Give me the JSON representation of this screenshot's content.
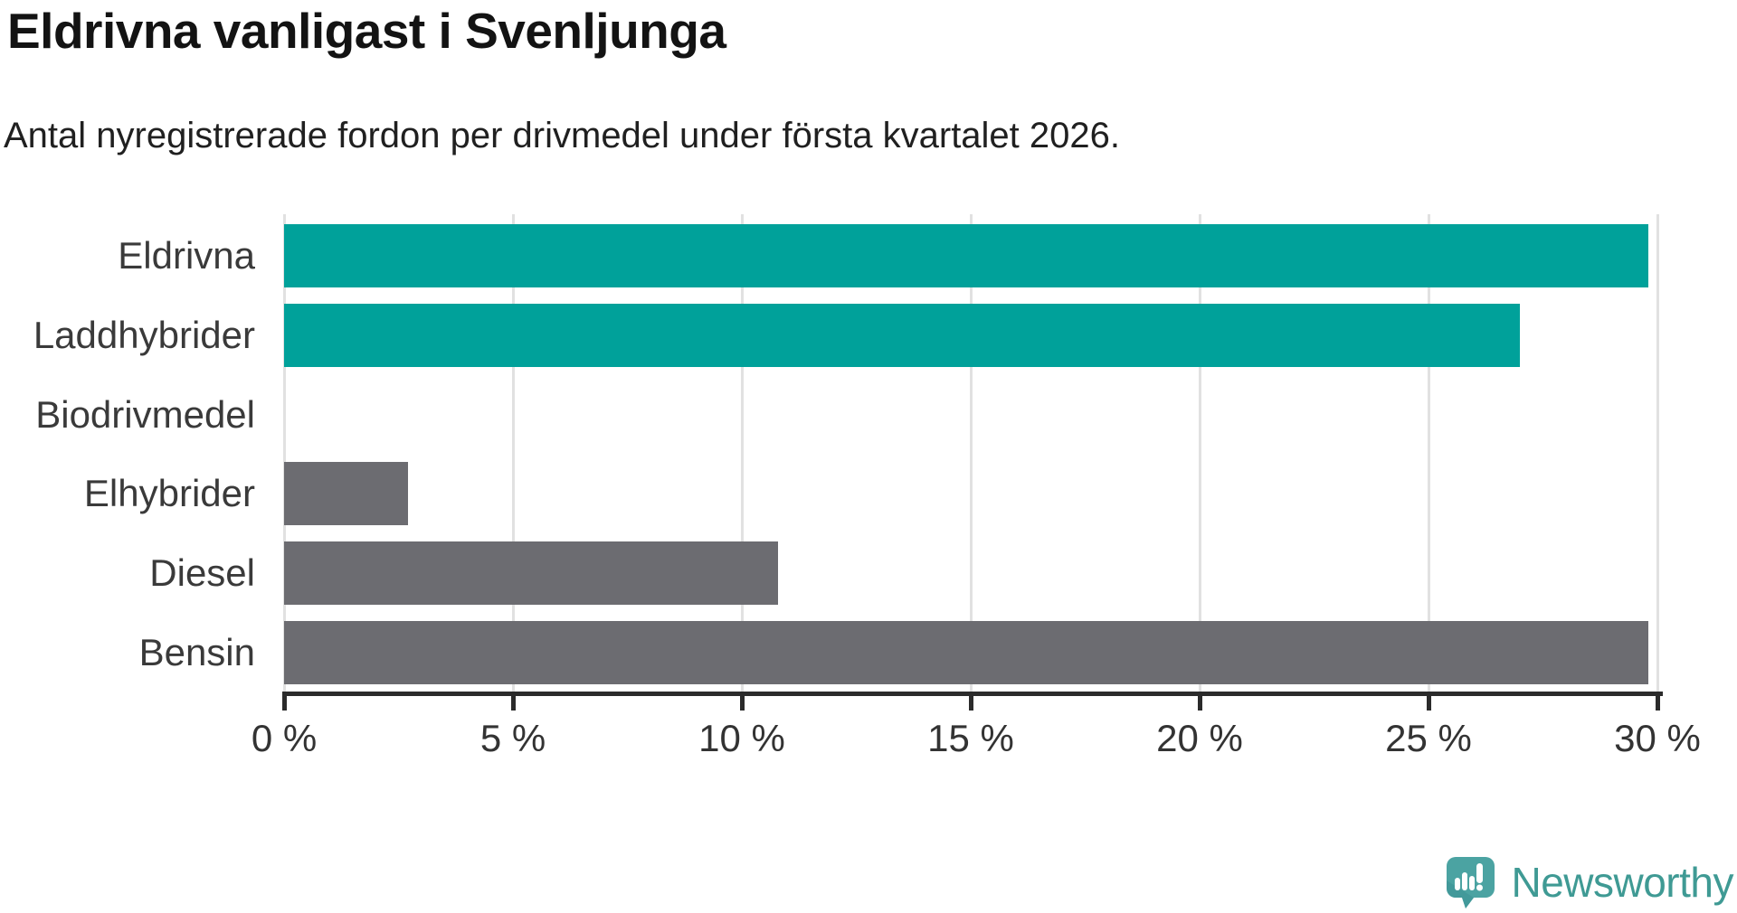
{
  "header": {
    "title": "Eldrivna vanligast i Svenljunga",
    "subtitle": "Antal nyregistrerade fordon per drivmedel under första kvartalet 2026."
  },
  "chart_data": {
    "type": "bar",
    "orientation": "horizontal",
    "title": "Eldrivna vanligast i Svenljunga",
    "subtitle": "Antal nyregistrerade fordon per drivmedel under första kvartalet 2026.",
    "categories": [
      "Eldrivna",
      "Laddhybrider",
      "Biodrivmedel",
      "Elhybrider",
      "Diesel",
      "Bensin"
    ],
    "values": [
      29.8,
      27.0,
      0,
      2.7,
      10.8,
      29.8
    ],
    "unit": "%",
    "xlim": [
      0,
      30
    ],
    "x_ticks": [
      0,
      5,
      10,
      15,
      20,
      25,
      30
    ],
    "x_tick_labels": [
      "0 %",
      "5 %",
      "10 %",
      "15 %",
      "20 %",
      "25 %",
      "30 %"
    ],
    "bar_colors": [
      "#00a19a",
      "#00a19a",
      "#6c6c71",
      "#6c6c71",
      "#6c6c71",
      "#6c6c71"
    ],
    "highlight_color": "#00a19a",
    "default_color": "#6c6c71",
    "grid": true,
    "gridline_color": "#e1e1e1",
    "axis_color": "#2b2b2b",
    "category_label_color": "#3a3a3a",
    "tick_label_color": "#333333",
    "legend": "none"
  },
  "footer": {
    "brand": "Newsworthy",
    "brand_color": "#3f9a94",
    "icon": "newsworthy-bubble-chart-icon",
    "icon_color": "#4ba3a2",
    "icon_shade_color": "#3d9294"
  }
}
